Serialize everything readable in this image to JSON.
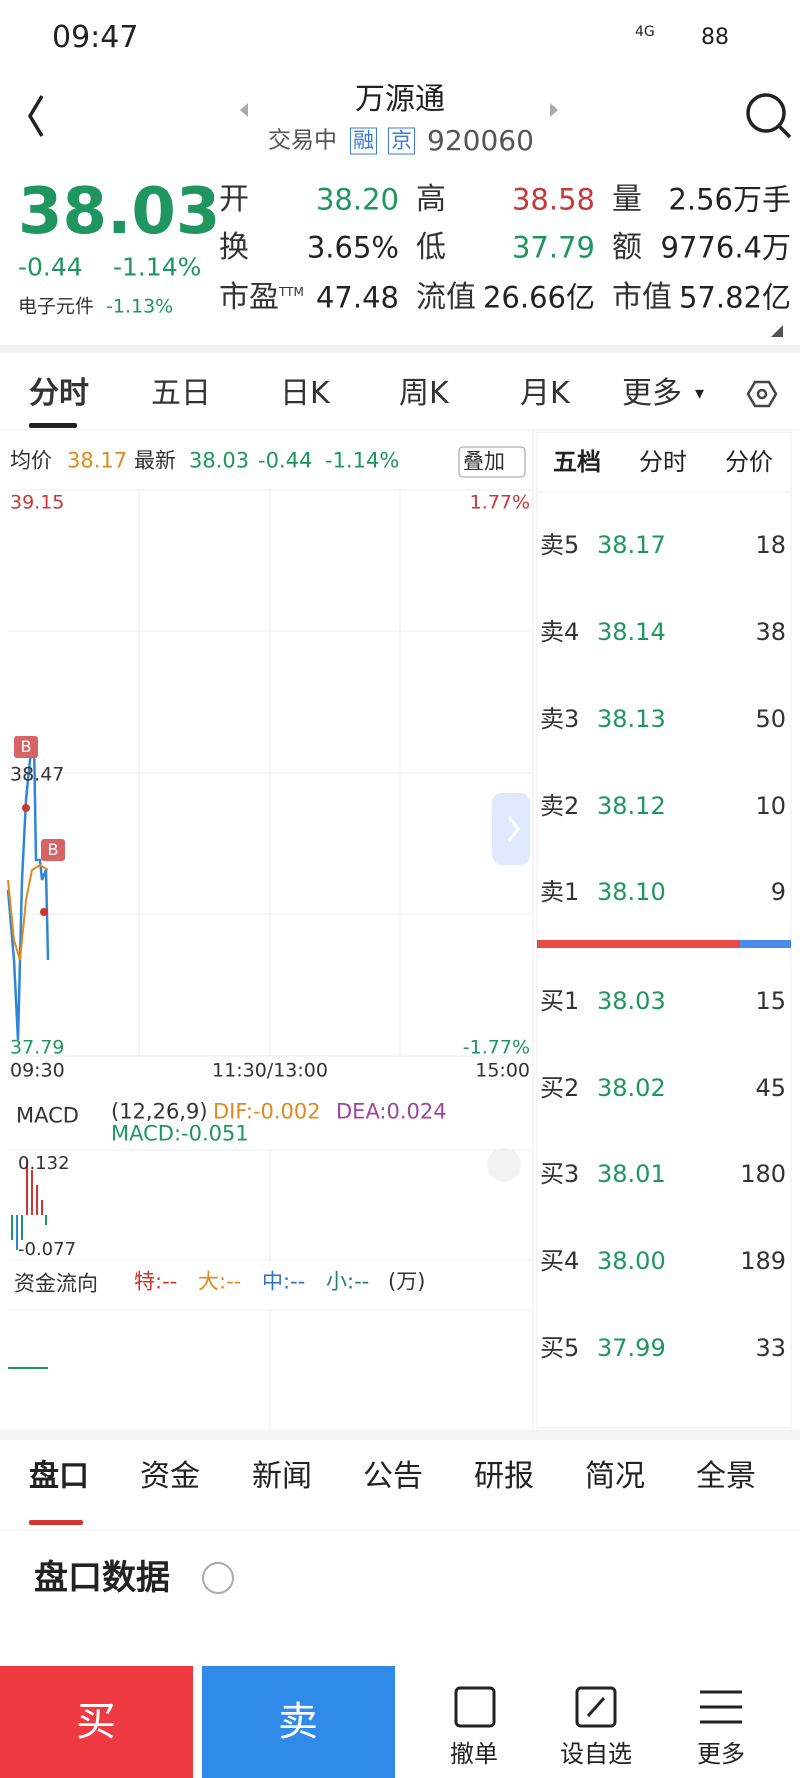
{
  "status_bar": {
    "time": "09:47",
    "network": "4G",
    "battery": "88"
  },
  "header": {
    "title": "万源通",
    "status": "交易中",
    "tags": [
      "融",
      "京"
    ],
    "code": "920060"
  },
  "quote": {
    "price": "38.03",
    "change": "-0.44",
    "change_pct": "-1.14%",
    "sector": "电子元件",
    "sector_change": "-1.13%",
    "stats": [
      {
        "label": "开",
        "value": "38.20",
        "color": "#1f9660"
      },
      {
        "label": "高",
        "value": "38.58",
        "color": "#c8383a"
      },
      {
        "label": "量",
        "value": "2.56万手",
        "color": "#222"
      },
      {
        "label": "换",
        "value": "3.65%",
        "color": "#222"
      },
      {
        "label": "低",
        "value": "37.79",
        "color": "#1f9660"
      },
      {
        "label": "额",
        "value": "9776.4万",
        "color": "#222"
      },
      {
        "label": "市盈",
        "sup": "TTM",
        "value": "47.48",
        "color": "#222"
      },
      {
        "label": "流值",
        "value": "26.66亿",
        "color": "#222"
      },
      {
        "label": "市值",
        "value": "57.82亿",
        "color": "#222"
      }
    ]
  },
  "chart_tabs": [
    "分时",
    "五日",
    "日K",
    "周K",
    "月K",
    "更多"
  ],
  "intraday": {
    "avg_label": "均价",
    "avg": "38.17",
    "latest_label": "最新",
    "latest": "38.03",
    "change": "-0.44",
    "change_pct": "-1.14%",
    "overlay": "叠加",
    "y_top": "39.15",
    "y_mid": "38.47",
    "y_bottom": "37.79",
    "pct_top": "1.77%",
    "pct_bottom": "-1.77%",
    "times": [
      "09:30",
      "11:30/13:00",
      "15:00"
    ],
    "markers": [
      "B",
      "B"
    ]
  },
  "macd": {
    "name": "MACD",
    "params": "(12,26,9)",
    "dif": "DIF:-0.002",
    "dea": "DEA:0.024",
    "macd": "MACD:-0.051",
    "y_top": "0.132",
    "y_bottom": "-0.077"
  },
  "fund_flow": {
    "name": "资金流向",
    "items": [
      {
        "text": "特:--",
        "color": "#d0352f"
      },
      {
        "text": "大:--",
        "color": "#e08a1e"
      },
      {
        "text": "中:--",
        "color": "#2f6fd0"
      },
      {
        "text": "小:--",
        "color": "#1f7f7a"
      }
    ],
    "unit": "(万)"
  },
  "order_book": {
    "tabs": [
      "五档",
      "分时",
      "分价"
    ],
    "asks": [
      {
        "label": "卖5",
        "price": "38.17",
        "volume": "18"
      },
      {
        "label": "卖4",
        "price": "38.14",
        "volume": "38"
      },
      {
        "label": "卖3",
        "price": "38.13",
        "volume": "50"
      },
      {
        "label": "卖2",
        "price": "38.12",
        "volume": "10"
      },
      {
        "label": "卖1",
        "price": "38.10",
        "volume": "9"
      }
    ],
    "bids": [
      {
        "label": "买1",
        "price": "38.03",
        "volume": "15"
      },
      {
        "label": "买2",
        "price": "38.02",
        "volume": "45"
      },
      {
        "label": "买3",
        "price": "38.01",
        "volume": "180"
      },
      {
        "label": "买4",
        "price": "38.00",
        "volume": "189"
      },
      {
        "label": "买5",
        "price": "37.99",
        "volume": "33"
      }
    ]
  },
  "bottom_tabs": [
    "盘口",
    "资金",
    "新闻",
    "公告",
    "研报",
    "简况",
    "全景"
  ],
  "section_title": "盘口数据",
  "actions": {
    "buy": "买",
    "sell": "卖",
    "tools": [
      "撤单",
      "设自选",
      "更多"
    ]
  }
}
